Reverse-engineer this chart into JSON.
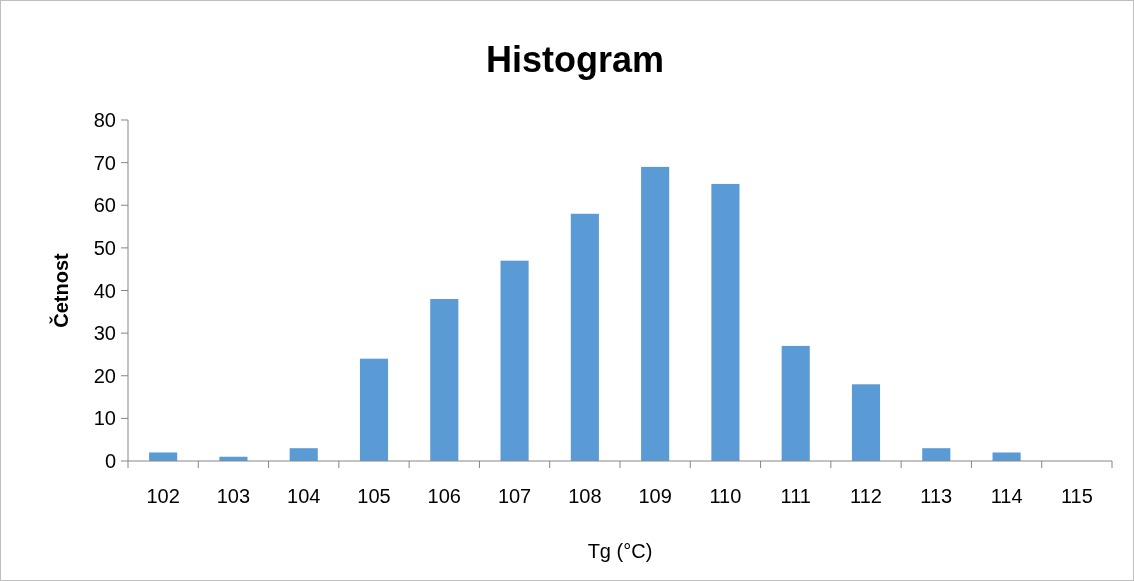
{
  "chart_data": {
    "type": "bar",
    "title": "Histogram",
    "xlabel": "Tg (°C)",
    "ylabel": "Četnost",
    "categories": [
      "102",
      "103",
      "104",
      "105",
      "106",
      "107",
      "108",
      "109",
      "110",
      "111",
      "112",
      "113",
      "114",
      "115"
    ],
    "values": [
      2,
      1,
      3,
      24,
      38,
      47,
      58,
      69,
      65,
      27,
      18,
      3,
      2,
      0
    ],
    "color": "#5b9bd5",
    "ylim": [
      0,
      80
    ],
    "yticks": [
      0,
      10,
      20,
      30,
      40,
      50,
      60,
      70,
      80
    ],
    "grid": false
  }
}
